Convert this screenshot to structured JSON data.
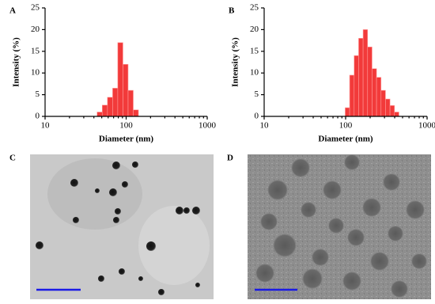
{
  "chart_data": [
    {
      "type": "histogram",
      "panel_label": "A",
      "xlabel": "Diameter (nm)",
      "ylabel": "Intensity (%)",
      "log_x": true,
      "xlim": [
        10,
        1000
      ],
      "xticks": [
        10,
        100,
        1000
      ],
      "ylim": [
        0,
        25
      ],
      "yticks": [
        0,
        5,
        10,
        15,
        20,
        25
      ],
      "color": "#f23a3a",
      "bins": [
        43.8,
        50.7,
        58.8,
        68.1,
        78.8,
        91.3,
        105.7,
        122.4,
        141.8
      ],
      "values": [
        1,
        2.6,
        4.4,
        6.5,
        17,
        12,
        6,
        1.5
      ]
    },
    {
      "type": "histogram",
      "panel_label": "B",
      "xlabel": "Diameter (nm)",
      "ylabel": "Intensity (%)",
      "log_x": true,
      "xlim": [
        10,
        1000
      ],
      "xticks": [
        10,
        100,
        1000
      ],
      "ylim": [
        0,
        25
      ],
      "yticks": [
        0,
        5,
        10,
        15,
        20,
        25
      ],
      "color": "#f23a3a",
      "bins": [
        98.7,
        112,
        127.2,
        144.4,
        163.9,
        186,
        211.1,
        239.6,
        272,
        308.7,
        350.4,
        397.7,
        451.4
      ],
      "values": [
        2,
        9.5,
        14,
        18,
        20,
        16,
        11,
        9,
        6,
        4,
        2.5,
        1
      ]
    }
  ],
  "images": [
    {
      "label": "C"
    },
    {
      "label": "D"
    }
  ]
}
